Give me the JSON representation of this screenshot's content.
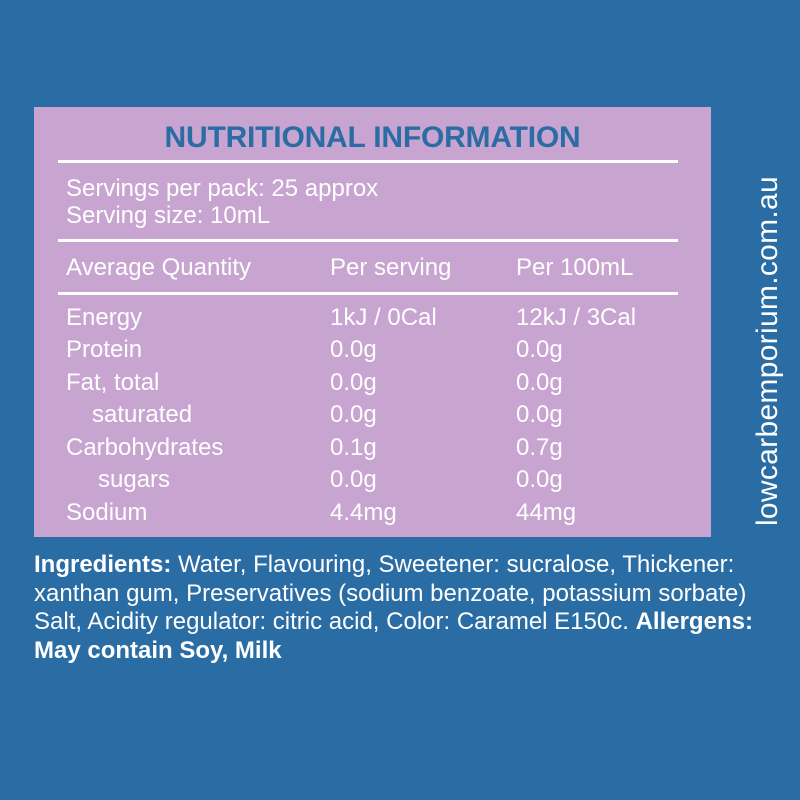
{
  "panel": {
    "title": "NUTRITIONAL INFORMATION",
    "servings_per_pack": "Servings per pack: 25 approx",
    "serving_size": "Serving size: 10mL",
    "headers": [
      "Average Quantity",
      "Per serving",
      "Per 100mL"
    ],
    "rows": [
      {
        "label": "Energy",
        "per_serving": "1kJ / 0Cal",
        "per_100ml": "12kJ / 3Cal"
      },
      {
        "label": "Protein",
        "per_serving": "0.0g",
        "per_100ml": "0.0g"
      },
      {
        "label": "Fat, total",
        "per_serving": "0.0g",
        "per_100ml": "0.0g"
      },
      {
        "label": "saturated",
        "per_serving": "0.0g",
        "per_100ml": "0.0g"
      },
      {
        "label": "Carbohydrates",
        "per_serving": "0.1g",
        "per_100ml": "0.7g"
      },
      {
        "label": "sugars",
        "per_serving": "0.0g",
        "per_100ml": "0.0g"
      },
      {
        "label": "Sodium",
        "per_serving": "4.4mg",
        "per_100ml": "44mg"
      }
    ]
  },
  "ingredients": {
    "label": "Ingredients:",
    "text": " Water, Flavouring, Sweetener: sucralose, Thickener: xanthan gum, Preservatives (sodium benzoate, potassium sorbate) Salt, Acidity regulator: citric acid, Color: Caramel E150c. ",
    "allergens": "Allergens: May contain Soy, Milk"
  },
  "website": "lowcarbemporium.com.au",
  "colors": {
    "background": "#2a6ca4",
    "panel": "#c8a4d0",
    "title": "#2a6ca4",
    "text": "#ffffff"
  }
}
